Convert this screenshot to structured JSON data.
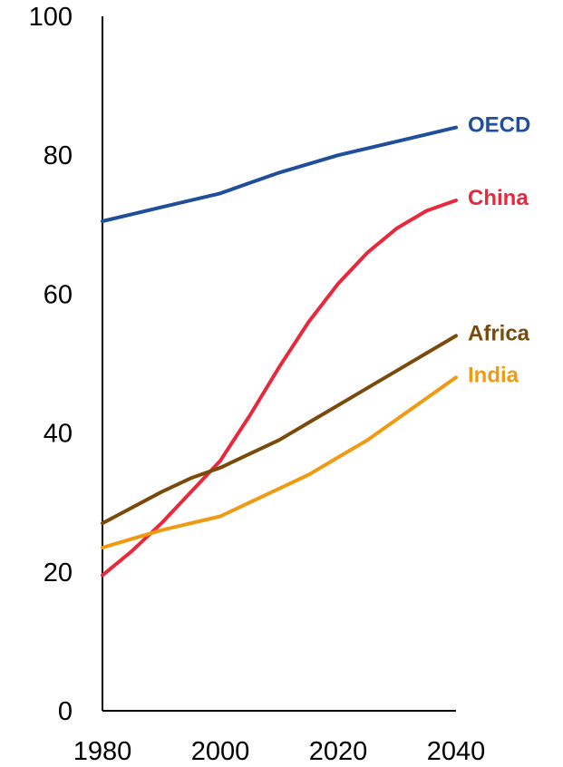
{
  "chart_data": {
    "type": "line",
    "title": "",
    "xlabel": "",
    "ylabel": "",
    "xlim": [
      1980,
      2040
    ],
    "ylim": [
      0,
      100
    ],
    "x_ticks": [
      1980,
      2000,
      2020,
      2040
    ],
    "y_ticks": [
      0,
      20,
      40,
      60,
      80,
      100
    ],
    "grid": false,
    "legend": "direct labels at line ends",
    "series": [
      {
        "name": "OECD",
        "color": "#1f4e9a",
        "x": [
          1980,
          1990,
          2000,
          2005,
          2010,
          2020,
          2030,
          2040
        ],
        "values": [
          70.5,
          72.5,
          74.5,
          76,
          77.5,
          80,
          82,
          84
        ]
      },
      {
        "name": "China",
        "color": "#e8283c",
        "x": [
          1980,
          1985,
          1990,
          1995,
          2000,
          2005,
          2010,
          2015,
          2020,
          2025,
          2030,
          2035,
          2040
        ],
        "values": [
          19.5,
          23,
          27,
          31.5,
          36,
          42.5,
          49.5,
          56,
          61.5,
          66,
          69.5,
          72,
          73.5
        ]
      },
      {
        "name": "Africa",
        "color": "#7a4a0a",
        "x": [
          1980,
          1990,
          1995,
          2000,
          2005,
          2010,
          2015,
          2020,
          2025,
          2030,
          2035,
          2040
        ],
        "values": [
          27,
          31.5,
          33.5,
          35,
          37,
          39,
          41.5,
          44,
          46.5,
          49,
          51.5,
          54
        ]
      },
      {
        "name": "India",
        "color": "#ef9a12",
        "x": [
          1980,
          1990,
          2000,
          2005,
          2010,
          2015,
          2020,
          2025,
          2030,
          2035,
          2040
        ],
        "values": [
          23.5,
          26,
          28,
          30,
          32,
          34,
          36.5,
          39,
          42,
          45,
          48
        ]
      }
    ]
  }
}
